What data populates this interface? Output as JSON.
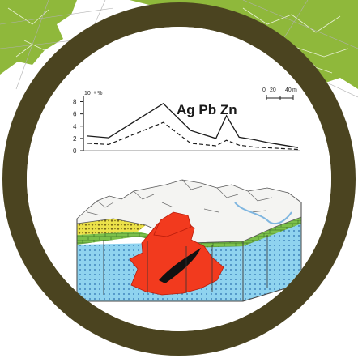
{
  "legend_elements": "Ag Pb Zn",
  "y_unit": "10⁻⁶ %",
  "y_ticks": [
    "0",
    "2",
    "4",
    "6",
    "8"
  ],
  "scale_bar": {
    "labels": [
      "0",
      "20",
      "40"
    ],
    "unit": "m"
  },
  "chart_data": {
    "type": "line",
    "ylim": [
      0,
      9
    ],
    "yticks": [
      0,
      2,
      4,
      6,
      8
    ],
    "series": [
      {
        "style": "solid",
        "points": [
          [
            0,
            2.4
          ],
          [
            0.1,
            2.1
          ],
          [
            0.36,
            7.7
          ],
          [
            0.49,
            3.3
          ],
          [
            0.61,
            2.0
          ],
          [
            0.66,
            5.7
          ],
          [
            0.72,
            2.2
          ],
          [
            0.79,
            1.8
          ],
          [
            0.86,
            1.3
          ],
          [
            1,
            0.5
          ]
        ]
      },
      {
        "style": "dashed",
        "points": [
          [
            0,
            1.2
          ],
          [
            0.1,
            1.0
          ],
          [
            0.36,
            4.6
          ],
          [
            0.49,
            1.2
          ],
          [
            0.61,
            0.8
          ],
          [
            0.66,
            1.7
          ],
          [
            0.72,
            0.9
          ],
          [
            0.79,
            0.6
          ],
          [
            1,
            0.2
          ]
        ]
      }
    ]
  },
  "colors": {
    "ring": "#4b4420",
    "background_map": "#8fb83b",
    "ore_body": "#f23a1e",
    "carbonate_layer": "#7cc04a",
    "sandstone_layer": "#ece24a",
    "basement": "#8fd3ef",
    "mountains": "#f4f4f2",
    "ore_lens": "#111111"
  }
}
